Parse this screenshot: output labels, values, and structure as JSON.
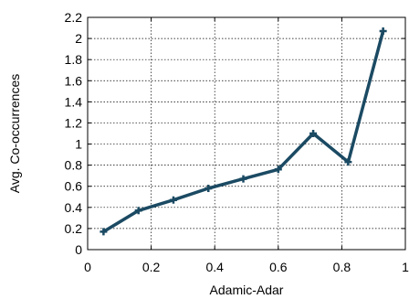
{
  "chart_data": {
    "type": "line",
    "title": "",
    "xlabel": "Adamic-Adar",
    "ylabel": "Avg. Co-occurrences",
    "xlim": [
      0,
      1
    ],
    "ylim": [
      0,
      2.2
    ],
    "xticks": [
      0,
      0.2,
      0.4,
      0.6,
      0.8,
      1
    ],
    "xtick_labels": [
      "0",
      "0.2",
      "0.4",
      "0.6",
      "0.8",
      "1"
    ],
    "yticks": [
      0,
      0.2,
      0.4,
      0.6,
      0.8,
      1,
      1.2,
      1.4,
      1.6,
      1.8,
      2,
      2.2
    ],
    "ytick_labels": [
      "0",
      "0.2",
      "0.4",
      "0.6",
      "0.8",
      "1",
      "1.2",
      "1.4",
      "1.6",
      "1.8",
      "2",
      "2.2"
    ],
    "grid": true,
    "legend": "none",
    "series": [
      {
        "color": "#1b4a63",
        "marker": "plus",
        "x": [
          0.05,
          0.16,
          0.27,
          0.38,
          0.49,
          0.6,
          0.71,
          0.82,
          0.93
        ],
        "y": [
          0.17,
          0.37,
          0.47,
          0.58,
          0.67,
          0.76,
          1.1,
          0.83,
          2.07
        ]
      }
    ]
  }
}
